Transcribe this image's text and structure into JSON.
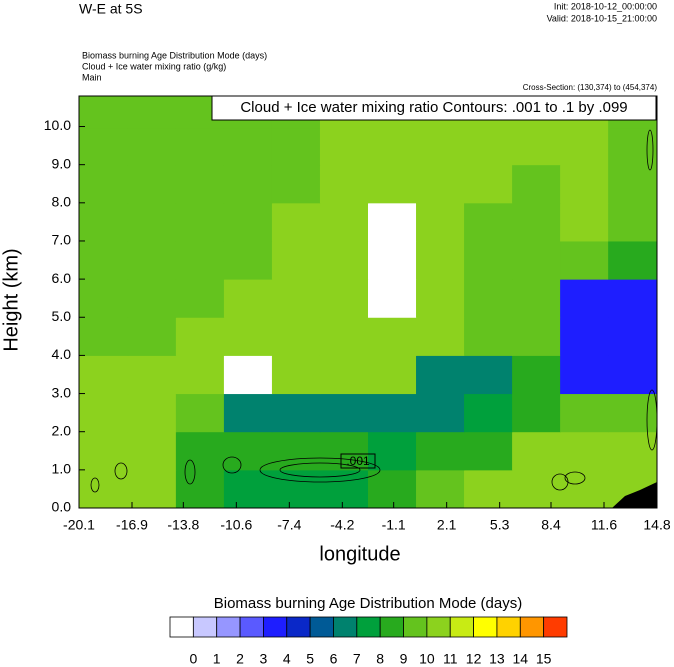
{
  "chart_data": {
    "type": "contour",
    "title": "W-E at 5S",
    "init": "Init: 2018-10-12_00:00:00",
    "valid": "Valid: 2018-10-15_21:00:00",
    "fields": [
      "Biomass burning Age Distribution Mode   (days)",
      "Cloud + Ice water mixing ratio   (g/kg)",
      "Main"
    ],
    "cross_section": "Cross-Section: (130,374) to (454,374)",
    "contour_note": "Cloud + Ice water mixing ratio Contours: .001 to .1 by .099",
    "contour_label": ".001",
    "xlabel": "longitude",
    "ylabel": "Height (km)",
    "xlim": [
      -20.1,
      14.8
    ],
    "xticks": [
      -20.1,
      -16.9,
      -13.8,
      -10.6,
      -7.4,
      -4.2,
      -1.1,
      2.1,
      5.3,
      8.4,
      11.6,
      14.8
    ],
    "ylim": [
      0,
      10.8
    ],
    "yticks": [
      {
        "value": 0,
        "label": "0.0"
      },
      {
        "value": 1,
        "label": "1.0"
      },
      {
        "value": 2,
        "label": "2.0"
      },
      {
        "value": 3,
        "label": "3.0"
      },
      {
        "value": 4,
        "label": "4.0"
      },
      {
        "value": 5,
        "label": "5.0"
      },
      {
        "value": 6,
        "label": "6.0"
      },
      {
        "value": 7,
        "label": "7.0"
      },
      {
        "value": 8,
        "label": "8.0"
      },
      {
        "value": 9,
        "label": "9.0"
      },
      {
        "value": 10,
        "label": "10.0"
      }
    ],
    "x": [
      -18.6,
      -15.7,
      -12.8,
      -9.9,
      -7.0,
      -4.1,
      -1.2,
      1.7,
      4.6,
      7.5,
      10.4,
      13.3
    ],
    "y": [
      0.5,
      1.5,
      2.5,
      3.5,
      4.5,
      5.5,
      6.5,
      7.5,
      8.5,
      9.5,
      10.4
    ],
    "z": [
      [
        10.5,
        10.5,
        8.5,
        7.5,
        7.5,
        7.5,
        8.5,
        9.5,
        10.5,
        10.5,
        10.5,
        10.5
      ],
      [
        10.5,
        10.5,
        8.5,
        8.5,
        8.5,
        8.5,
        7.5,
        8.5,
        8.5,
        10.5,
        10.5,
        10.5
      ],
      [
        10.5,
        10.5,
        9.5,
        6.5,
        6.5,
        6.5,
        6.5,
        6.5,
        7.5,
        8.5,
        9.5,
        9.5
      ],
      [
        10.5,
        10.5,
        10.5,
        -0.5,
        10.5,
        10.5,
        10.5,
        6.5,
        6.5,
        8.5,
        3.5,
        3.5
      ],
      [
        9.5,
        9.5,
        10.5,
        10.5,
        10.5,
        10.5,
        10.5,
        10.5,
        9.5,
        9.5,
        3.5,
        3.5
      ],
      [
        9.5,
        9.5,
        9.5,
        10.5,
        10.5,
        10.5,
        -0.5,
        10.5,
        9.5,
        9.5,
        3.5,
        3.5
      ],
      [
        9.5,
        9.5,
        9.5,
        9.5,
        10.5,
        10.5,
        -0.5,
        10.5,
        9.5,
        9.5,
        9.5,
        8.5
      ],
      [
        9.5,
        9.5,
        9.5,
        9.5,
        10.5,
        10.5,
        -0.5,
        10.5,
        9.5,
        9.5,
        10.5,
        9.5
      ],
      [
        9.5,
        9.5,
        9.5,
        9.5,
        9.5,
        10.5,
        10.5,
        10.5,
        10.5,
        9.5,
        10.5,
        9.5
      ],
      [
        9.5,
        9.5,
        9.5,
        9.5,
        9.5,
        10.5,
        10.5,
        10.5,
        10.5,
        10.5,
        10.5,
        9.5
      ],
      [
        9.5,
        9.5,
        9.5,
        9.5,
        9.5,
        10.5,
        10.5,
        10.5,
        10.5,
        10.5,
        10.5,
        9.5
      ]
    ],
    "colorbar": {
      "title": "Biomass burning Age Distribution Mode  (days)",
      "levels": [
        0,
        1,
        2,
        3,
        4,
        5,
        6,
        7,
        8,
        9,
        10,
        11,
        12,
        13,
        14,
        15
      ],
      "colors": [
        "#ffffff",
        "#c8c8ff",
        "#9696ff",
        "#5a5aff",
        "#1e1eff",
        "#0a28c8",
        "#005a96",
        "#00826e",
        "#00a03c",
        "#28aa1e",
        "#64c31e",
        "#8cd21e",
        "#c8eb14",
        "#ffff00",
        "#ffd200",
        "#ff9600",
        "#ff3c00"
      ]
    }
  }
}
